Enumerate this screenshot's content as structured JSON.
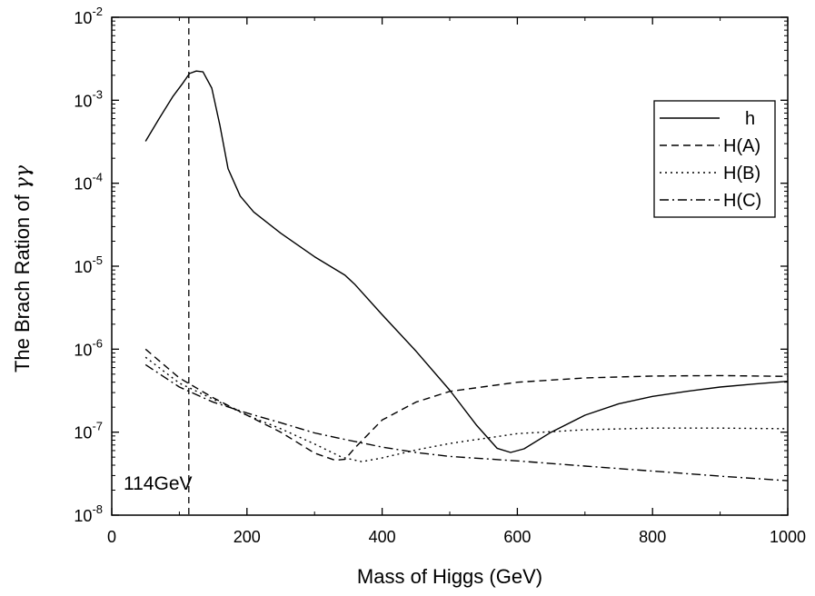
{
  "chart_data": {
    "type": "line",
    "xlabel": "Mass of Higgs (GeV)",
    "ylabel_text": "The Brach Ration of ",
    "ylabel_symbol": "γγ",
    "xlim": [
      0,
      1000
    ],
    "ylim_log10": [
      -8,
      -2
    ],
    "y_scale": "log",
    "x_ticks": [
      0,
      200,
      400,
      600,
      800,
      1000
    ],
    "x_tick_labels": [
      "0",
      "200",
      "400",
      "600",
      "800",
      "1000"
    ],
    "y_tick_exponents": [
      -8,
      -7,
      -6,
      -5,
      -4,
      -3,
      -2
    ],
    "y_tick_base": "10",
    "grid": false,
    "legend_position": "top-right",
    "annotation": {
      "text": "114GeV",
      "x_line": 114
    },
    "series": [
      {
        "name": "h",
        "style": "solid",
        "points": [
          [
            50,
            0.00032
          ],
          [
            70,
            0.0006
          ],
          [
            90,
            0.0011
          ],
          [
            105,
            0.0016
          ],
          [
            115,
            0.0021
          ],
          [
            125,
            0.00225
          ],
          [
            135,
            0.0022
          ],
          [
            148,
            0.0014
          ],
          [
            160,
            0.0005
          ],
          [
            172,
            0.00015
          ],
          [
            190,
            7e-05
          ],
          [
            210,
            4.5e-05
          ],
          [
            250,
            2.5e-05
          ],
          [
            300,
            1.3e-05
          ],
          [
            345,
            7.8e-06
          ],
          [
            360,
            6e-06
          ],
          [
            400,
            2.6e-06
          ],
          [
            450,
            9.5e-07
          ],
          [
            500,
            3.2e-07
          ],
          [
            540,
            1.2e-07
          ],
          [
            570,
            6.4e-08
          ],
          [
            590,
            5.7e-08
          ],
          [
            610,
            6.3e-08
          ],
          [
            650,
            1e-07
          ],
          [
            700,
            1.6e-07
          ],
          [
            750,
            2.2e-07
          ],
          [
            800,
            2.7e-07
          ],
          [
            850,
            3.1e-07
          ],
          [
            900,
            3.5e-07
          ],
          [
            950,
            3.8e-07
          ],
          [
            1000,
            4.1e-07
          ]
        ]
      },
      {
        "name": "H(A)",
        "style": "dashed",
        "points": [
          [
            50,
            1e-06
          ],
          [
            100,
            4.5e-07
          ],
          [
            150,
            2.6e-07
          ],
          [
            200,
            1.6e-07
          ],
          [
            250,
            1e-07
          ],
          [
            300,
            5.6e-08
          ],
          [
            330,
            4.6e-08
          ],
          [
            345,
            4.7e-08
          ],
          [
            360,
            6.5e-08
          ],
          [
            400,
            1.4e-07
          ],
          [
            450,
            2.3e-07
          ],
          [
            500,
            3.1e-07
          ],
          [
            600,
            4e-07
          ],
          [
            700,
            4.5e-07
          ],
          [
            800,
            4.75e-07
          ],
          [
            900,
            4.8e-07
          ],
          [
            1000,
            4.7e-07
          ]
        ]
      },
      {
        "name": "H(B)",
        "style": "dotted",
        "points": [
          [
            50,
            8e-07
          ],
          [
            100,
            3.9e-07
          ],
          [
            150,
            2.5e-07
          ],
          [
            200,
            1.6e-07
          ],
          [
            250,
            1.1e-07
          ],
          [
            300,
            7.2e-08
          ],
          [
            340,
            5e-08
          ],
          [
            370,
            4.4e-08
          ],
          [
            400,
            4.9e-08
          ],
          [
            450,
            6.1e-08
          ],
          [
            500,
            7.3e-08
          ],
          [
            600,
            9.6e-08
          ],
          [
            700,
            1.07e-07
          ],
          [
            800,
            1.12e-07
          ],
          [
            900,
            1.12e-07
          ],
          [
            1000,
            1.1e-07
          ]
        ]
      },
      {
        "name": "H(C)",
        "style": "dashdot",
        "points": [
          [
            50,
            6.5e-07
          ],
          [
            100,
            3.5e-07
          ],
          [
            150,
            2.3e-07
          ],
          [
            200,
            1.7e-07
          ],
          [
            250,
            1.3e-07
          ],
          [
            300,
            9.8e-08
          ],
          [
            350,
            8e-08
          ],
          [
            400,
            6.6e-08
          ],
          [
            450,
            5.7e-08
          ],
          [
            500,
            5.1e-08
          ],
          [
            600,
            4.5e-08
          ],
          [
            700,
            3.9e-08
          ],
          [
            800,
            3.4e-08
          ],
          [
            900,
            2.95e-08
          ],
          [
            1000,
            2.6e-08
          ]
        ]
      }
    ]
  }
}
